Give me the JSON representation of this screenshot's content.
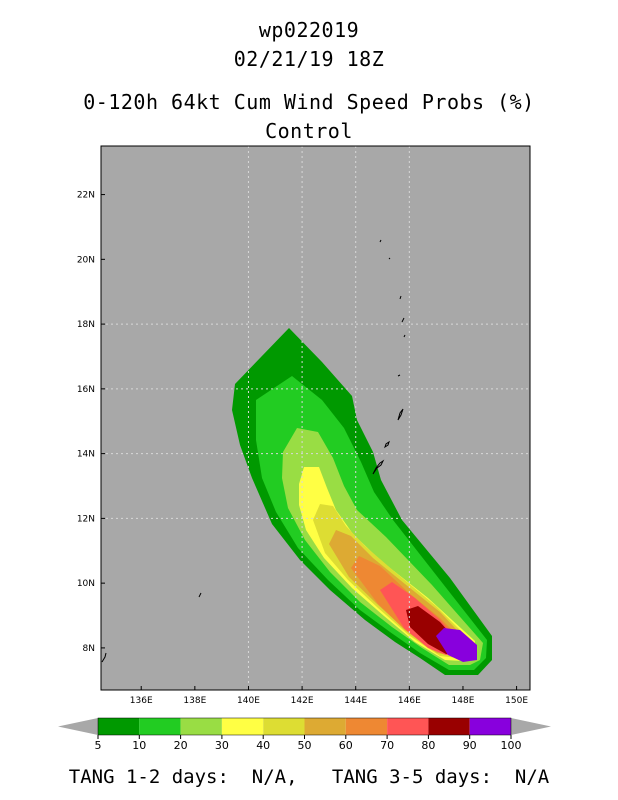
{
  "header": {
    "storm_id": "wp022019",
    "datetime": "02/21/19 18Z",
    "product": "0-120h 64kt Cum Wind Speed Probs (%)",
    "run": "Control"
  },
  "map": {
    "lon_range": [
      134.5,
      150.5
    ],
    "lat_range": [
      6.7,
      23.5
    ],
    "x_ticks": [
      "136E",
      "138E",
      "140E",
      "142E",
      "144E",
      "146E",
      "148E",
      "150E"
    ],
    "x_tick_values": [
      136,
      138,
      140,
      142,
      144,
      146,
      148,
      150
    ],
    "y_ticks": [
      "8N",
      "10N",
      "12N",
      "14N",
      "16N",
      "18N",
      "20N",
      "22N"
    ],
    "y_tick_values": [
      8,
      10,
      12,
      14,
      16,
      18,
      20,
      22
    ],
    "gridlines": true,
    "background_color": "#a8a8a8"
  },
  "colorbar": {
    "labels": [
      "5",
      "10",
      "20",
      "30",
      "40",
      "50",
      "60",
      "70",
      "80",
      "90",
      "100"
    ],
    "colors": [
      "#009900",
      "#22cc22",
      "#99dd44",
      "#ffff44",
      "#dddd33",
      "#ddaa33",
      "#ee8833",
      "#ff5555",
      "#990000",
      "#8800dd"
    ]
  },
  "footer": {
    "tang_12": "TANG 1-2 days:  N/A,",
    "tang_35": "TANG 3-5 days:  N/A"
  }
}
